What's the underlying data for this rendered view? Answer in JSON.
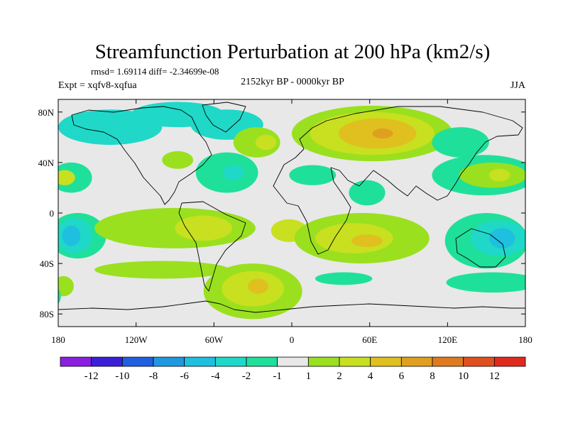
{
  "chart_data": {
    "type": "heatmap",
    "title": "Streamfunction Perturbation at 200 hPa (km2/s)",
    "stats": "rmsd= 1.69114 diff= -2.34699e-08",
    "expt": "Expt = xqfv8-xqfua",
    "period": "2152kyr BP - 0000kyr BP",
    "season": "JJA",
    "xlim": [
      -180,
      180
    ],
    "ylim": [
      -90,
      90
    ],
    "x_ticks": [
      {
        "value": -180,
        "label": "180"
      },
      {
        "value": -120,
        "label": "120W"
      },
      {
        "value": -60,
        "label": "60W"
      },
      {
        "value": 0,
        "label": "0"
      },
      {
        "value": 60,
        "label": "60E"
      },
      {
        "value": 120,
        "label": "120E"
      },
      {
        "value": 180,
        "label": "180"
      }
    ],
    "y_ticks": [
      {
        "value": 80,
        "label": "80N"
      },
      {
        "value": 40,
        "label": "40N"
      },
      {
        "value": 0,
        "label": "0"
      },
      {
        "value": -40,
        "label": "40S"
      },
      {
        "value": -80,
        "label": "80S"
      }
    ],
    "colorbar": {
      "levels": [
        "-12",
        "-10",
        "-8",
        "-6",
        "-4",
        "-2",
        "-1",
        "1",
        "2",
        "4",
        "6",
        "8",
        "10",
        "12"
      ],
      "colors": [
        "#8a1fe0",
        "#3a1fd8",
        "#1f5fe0",
        "#1f98e0",
        "#1fbfe0",
        "#1fd8c8",
        "#1fe09a",
        "#e8e8e8",
        "#9ae01f",
        "#c8e01f",
        "#e0c01f",
        "#e0a01f",
        "#e07a1f",
        "#e0501f",
        "#e02a1f"
      ]
    },
    "regions": [
      {
        "level_index": 5,
        "lon": -140,
        "lat": 68,
        "rlon": 40,
        "rlat": 14
      },
      {
        "level_index": 5,
        "lon": -88,
        "lat": 78,
        "rlon": 36,
        "rlat": 10
      },
      {
        "level_index": 5,
        "lon": -50,
        "lat": 70,
        "rlon": 28,
        "rlat": 12
      },
      {
        "level_index": 6,
        "lon": -170,
        "lat": 28,
        "rlon": 16,
        "rlat": 12
      },
      {
        "level_index": 9,
        "lon": -175,
        "lat": 28,
        "rlon": 8,
        "rlat": 6
      },
      {
        "level_index": 8,
        "lon": -88,
        "lat": 42,
        "rlon": 12,
        "rlat": 7
      },
      {
        "level_index": 6,
        "lon": -50,
        "lat": 32,
        "rlon": 24,
        "rlat": 16
      },
      {
        "level_index": 5,
        "lon": -45,
        "lat": 32,
        "rlon": 8,
        "rlat": 6
      },
      {
        "level_index": 8,
        "lon": -27,
        "lat": 56,
        "rlon": 18,
        "rlat": 12
      },
      {
        "level_index": 9,
        "lon": -20,
        "lat": 56,
        "rlon": 8,
        "rlat": 6
      },
      {
        "level_index": 8,
        "lon": 62,
        "lat": 63,
        "rlon": 62,
        "rlat": 22
      },
      {
        "level_index": 9,
        "lon": 62,
        "lat": 63,
        "rlon": 48,
        "rlat": 17
      },
      {
        "level_index": 10,
        "lon": 66,
        "lat": 63,
        "rlon": 30,
        "rlat": 12
      },
      {
        "level_index": 11,
        "lon": 70,
        "lat": 63,
        "rlon": 8,
        "rlat": 4
      },
      {
        "level_index": 6,
        "lon": 16,
        "lat": 30,
        "rlon": 18,
        "rlat": 8
      },
      {
        "level_index": 6,
        "lon": 58,
        "lat": 16,
        "rlon": 14,
        "rlat": 10
      },
      {
        "level_index": 6,
        "lon": 130,
        "lat": 56,
        "rlon": 22,
        "rlat": 12
      },
      {
        "level_index": 6,
        "lon": 148,
        "lat": 30,
        "rlon": 40,
        "rlat": 16
      },
      {
        "level_index": 8,
        "lon": 155,
        "lat": 30,
        "rlon": 26,
        "rlat": 10
      },
      {
        "level_index": 9,
        "lon": 160,
        "lat": 30,
        "rlon": 8,
        "rlat": 5
      },
      {
        "level_index": 6,
        "lon": -165,
        "lat": -18,
        "rlon": 22,
        "rlat": 18
      },
      {
        "level_index": 5,
        "lon": -168,
        "lat": -18,
        "rlon": 14,
        "rlat": 14
      },
      {
        "level_index": 4,
        "lon": -170,
        "lat": -18,
        "rlon": 7,
        "rlat": 8
      },
      {
        "level_index": 8,
        "lon": -90,
        "lat": -12,
        "rlon": 62,
        "rlat": 16
      },
      {
        "level_index": 9,
        "lon": -68,
        "lat": -12,
        "rlon": 22,
        "rlat": 10
      },
      {
        "level_index": 9,
        "lon": -2,
        "lat": -14,
        "rlon": 14,
        "rlat": 9
      },
      {
        "level_index": 8,
        "lon": 54,
        "lat": -20,
        "rlon": 52,
        "rlat": 20
      },
      {
        "level_index": 9,
        "lon": 48,
        "lat": -20,
        "rlon": 30,
        "rlat": 12
      },
      {
        "level_index": 10,
        "lon": 58,
        "lat": -22,
        "rlon": 12,
        "rlat": 5
      },
      {
        "level_index": 6,
        "lon": 150,
        "lat": -22,
        "rlon": 32,
        "rlat": 22
      },
      {
        "level_index": 5,
        "lon": 160,
        "lat": -20,
        "rlon": 22,
        "rlat": 14
      },
      {
        "level_index": 4,
        "lon": 162,
        "lat": -20,
        "rlon": 10,
        "rlat": 8
      },
      {
        "level_index": 8,
        "lon": -100,
        "lat": -45,
        "rlon": 52,
        "rlat": 7
      },
      {
        "level_index": 8,
        "lon": -176,
        "lat": -58,
        "rlon": 8,
        "rlat": 8
      },
      {
        "level_index": 6,
        "lon": -185,
        "lat": -66,
        "rlon": 7,
        "rlat": 9
      },
      {
        "level_index": 6,
        "lon": 155,
        "lat": -55,
        "rlon": 36,
        "rlat": 8
      },
      {
        "level_index": 6,
        "lon": 40,
        "lat": -52,
        "rlon": 22,
        "rlat": 5
      },
      {
        "level_index": 8,
        "lon": -30,
        "lat": -62,
        "rlon": 38,
        "rlat": 22
      },
      {
        "level_index": 9,
        "lon": -30,
        "lat": -60,
        "rlon": 24,
        "rlat": 14
      },
      {
        "level_index": 10,
        "lon": -26,
        "lat": -58,
        "rlon": 8,
        "rlat": 6
      }
    ]
  }
}
